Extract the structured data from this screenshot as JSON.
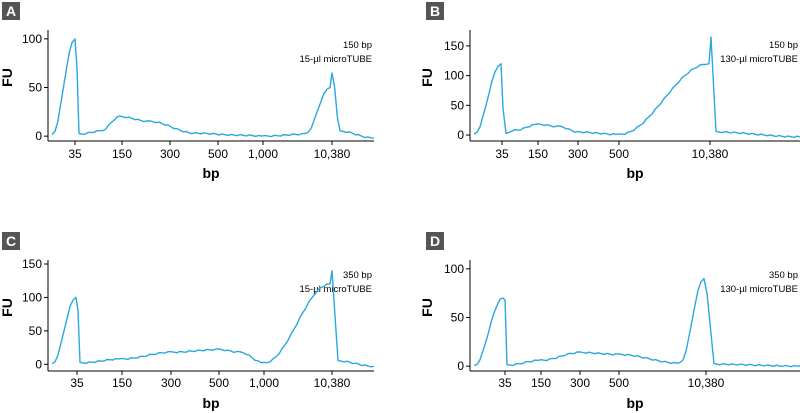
{
  "colors": {
    "trace": "#29a8e0",
    "axis": "#000000",
    "badge": "#555555"
  },
  "chart_data": [
    {
      "type": "line",
      "panel_label": "A",
      "xlabel": "bp",
      "ylabel": "FU",
      "x_scale": "electropherogram (nonlinear, migration based)",
      "x_ticks": [
        "35",
        "150",
        "300",
        "500",
        "1,000",
        "10,380"
      ],
      "y_ticks": [
        "0",
        "50",
        "100"
      ],
      "ylim": [
        -5,
        105
      ],
      "annotation": [
        "150 bp",
        "15-µl microTUBE"
      ],
      "series": [
        {
          "x": [
            "<35",
            "35",
            "35",
            "35",
            "~80",
            "150",
            "~220",
            "300",
            "500",
            "1,000",
            "~7,000",
            "10,380",
            "10,380",
            "10,380",
            ">10,380"
          ],
          "y": [
            1,
            100,
            70,
            2,
            5,
            20,
            15,
            3,
            1,
            0,
            2,
            50,
            65,
            5,
            -2
          ]
        }
      ]
    },
    {
      "type": "line",
      "panel_label": "B",
      "xlabel": "bp",
      "ylabel": "FU",
      "x_scale": "electropherogram (nonlinear, migration based)",
      "x_ticks": [
        "35",
        "150",
        "300",
        "500",
        "10,380"
      ],
      "y_ticks": [
        "0",
        "50",
        "100",
        "150"
      ],
      "ylim": [
        -10,
        170
      ],
      "annotation": [
        "150 bp",
        "130-µl microTUBE"
      ],
      "series": [
        {
          "x": [
            "<35",
            "35",
            "35",
            "35",
            "~80",
            "150",
            "~220",
            "300",
            "500",
            "10,380",
            "10,380",
            "10,380",
            ">10,380"
          ],
          "y": [
            1,
            120,
            45,
            3,
            8,
            18,
            14,
            5,
            1,
            120,
            165,
            5,
            -3
          ]
        }
      ]
    },
    {
      "type": "line",
      "panel_label": "C",
      "xlabel": "bp",
      "ylabel": "FU",
      "x_scale": "electropherogram (nonlinear, migration based)",
      "x_ticks": [
        "35",
        "150",
        "300",
        "500",
        "1,000",
        "10,380"
      ],
      "y_ticks": [
        "0",
        "50",
        "100",
        "150"
      ],
      "ylim": [
        -10,
        150
      ],
      "annotation": [
        "350 bp",
        "15-µl microTUBE"
      ],
      "series": [
        {
          "x": [
            "<35",
            "35",
            "35",
            "35",
            "150",
            "300",
            "500",
            "~700",
            "1,000",
            "10,380",
            "10,380",
            "10,380",
            ">10,380"
          ],
          "y": [
            0,
            100,
            80,
            2,
            8,
            18,
            22,
            18,
            2,
            120,
            140,
            5,
            -3
          ]
        }
      ]
    },
    {
      "type": "line",
      "panel_label": "D",
      "xlabel": "bp",
      "ylabel": "FU",
      "x_scale": "electropherogram (nonlinear, migration based)",
      "x_ticks": [
        "35",
        "150",
        "300",
        "500",
        "10,380"
      ],
      "y_ticks": [
        "0",
        "50",
        "100"
      ],
      "ylim": [
        -5,
        105
      ],
      "annotation": [
        "350 bp",
        "130-µl microTUBE"
      ],
      "series": [
        {
          "x": [
            "<35",
            "35",
            "35",
            "35",
            "150",
            "300",
            "500",
            "~1,500",
            "10,380",
            "10,380",
            "10,380",
            ">10,380"
          ],
          "y": [
            0,
            70,
            68,
            1,
            6,
            14,
            12,
            3,
            90,
            75,
            2,
            0
          ]
        }
      ]
    }
  ]
}
